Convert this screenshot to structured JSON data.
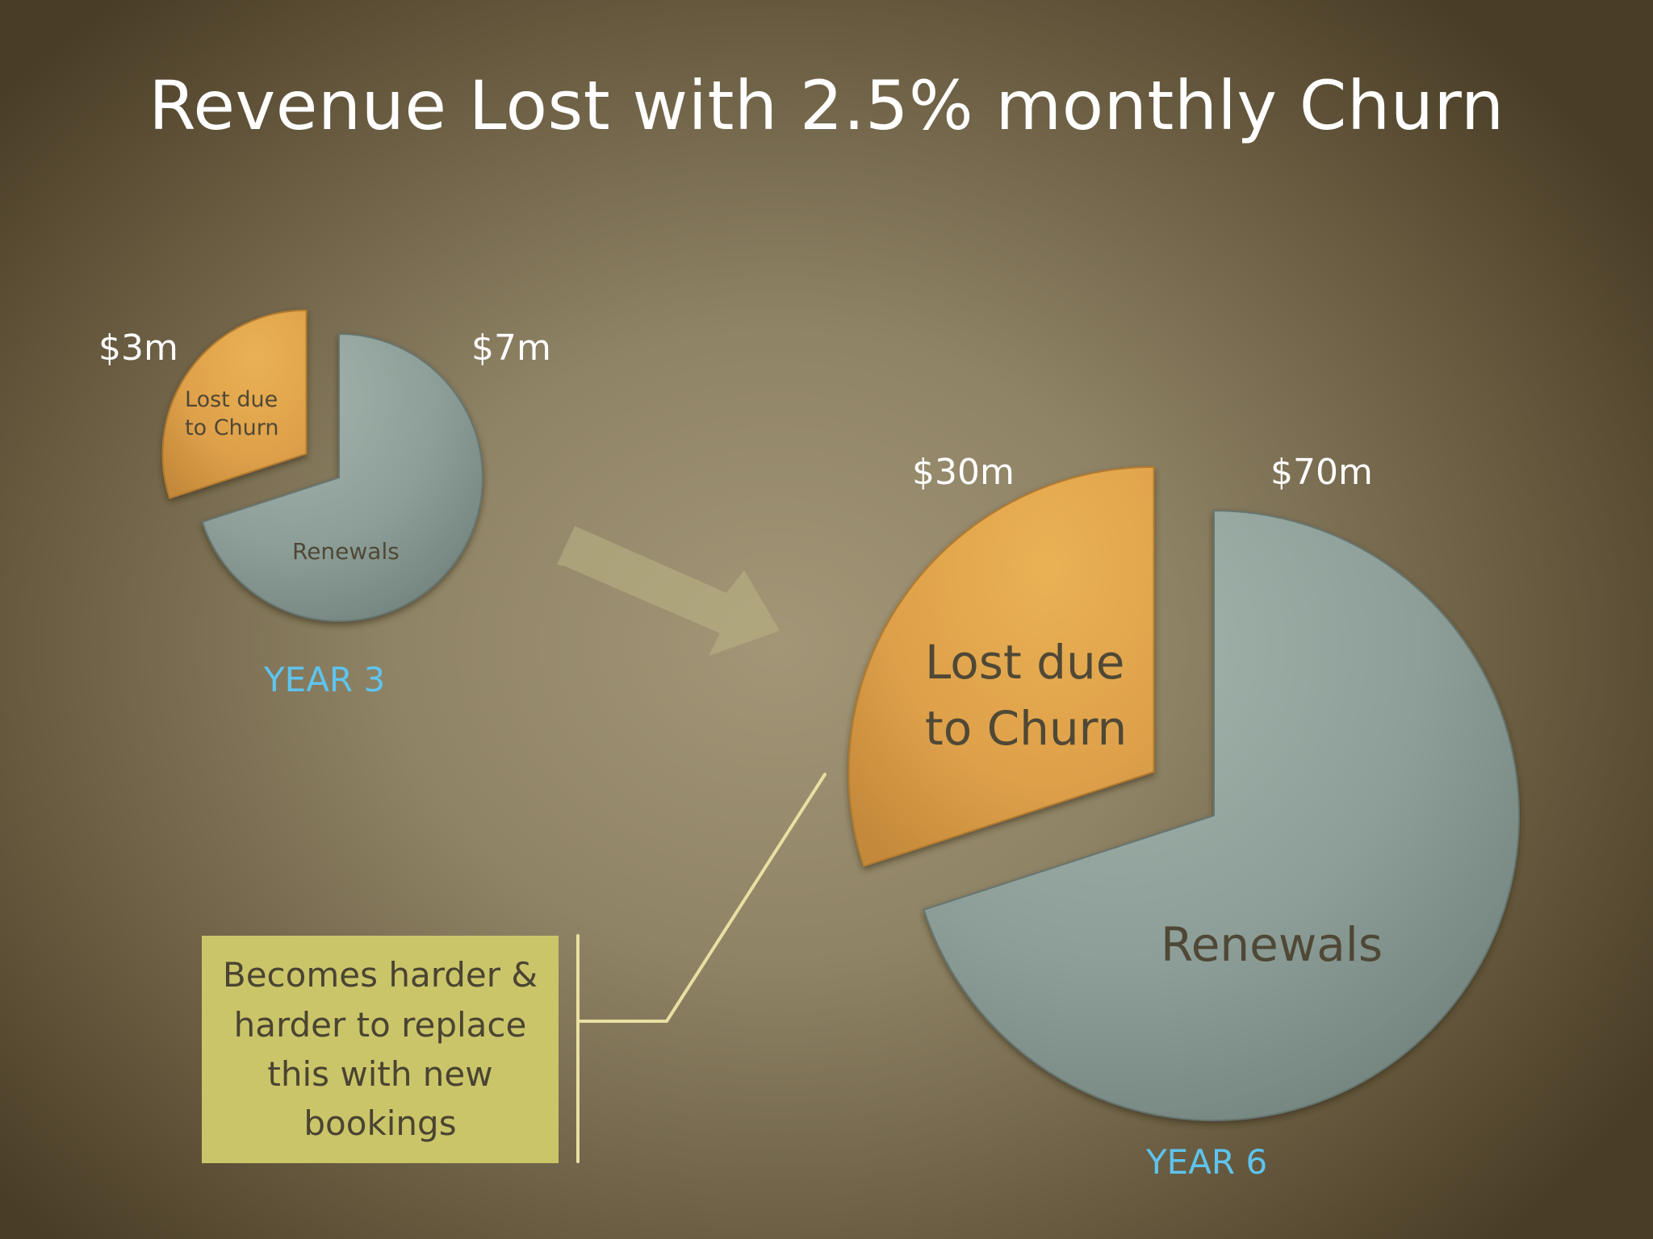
{
  "title": "Revenue Lost with 2.5% monthly Churn",
  "colors": {
    "churn": "#e2a348",
    "renewals": "#8d9e98",
    "year_label": "#5ec4ee",
    "callout_bg": "#cbc56a",
    "arrow": "#bcb585"
  },
  "callout": {
    "text": "Becomes harder & harder to replace this with new bookings"
  },
  "chart_data": [
    {
      "type": "pie",
      "caption": "YEAR 3",
      "slices": [
        {
          "label_line1": "Lost due",
          "label_line2": "to Churn",
          "value": 3,
          "value_label": "$3m",
          "exploded": true,
          "color": "#e2a348"
        },
        {
          "label": "Renewals",
          "value": 7,
          "value_label": "$7m",
          "exploded": false,
          "color": "#8d9e98"
        }
      ]
    },
    {
      "type": "pie",
      "caption": "YEAR 6",
      "slices": [
        {
          "label_line1": "Lost due",
          "label_line2": "to Churn",
          "value": 30,
          "value_label": "$30m",
          "exploded": true,
          "color": "#e2a348"
        },
        {
          "label": "Renewals",
          "value": 70,
          "value_label": "$70m",
          "exploded": false,
          "color": "#8d9e98"
        }
      ]
    }
  ]
}
